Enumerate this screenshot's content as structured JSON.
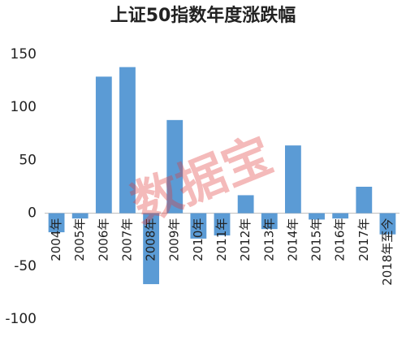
{
  "chart_data": {
    "type": "bar",
    "title": "上证50指数年度涨跌幅",
    "categories": [
      "2004年",
      "2005年",
      "2006年",
      "2007年",
      "2008年",
      "2009年",
      "2010年",
      "2011年",
      "2012年",
      "2013年",
      "2014年",
      "2015年",
      "2016年",
      "2017年",
      "2018年至今"
    ],
    "values": [
      -18,
      -5,
      129,
      138,
      -67,
      88,
      -24,
      -21,
      17,
      -15,
      64,
      -6,
      -5,
      25,
      -20
    ],
    "color": "#5b9bd5",
    "ylim": [
      -100,
      150
    ],
    "yticks": [
      -100,
      -50,
      0,
      50,
      100,
      150
    ],
    "watermark": "数据宝"
  }
}
